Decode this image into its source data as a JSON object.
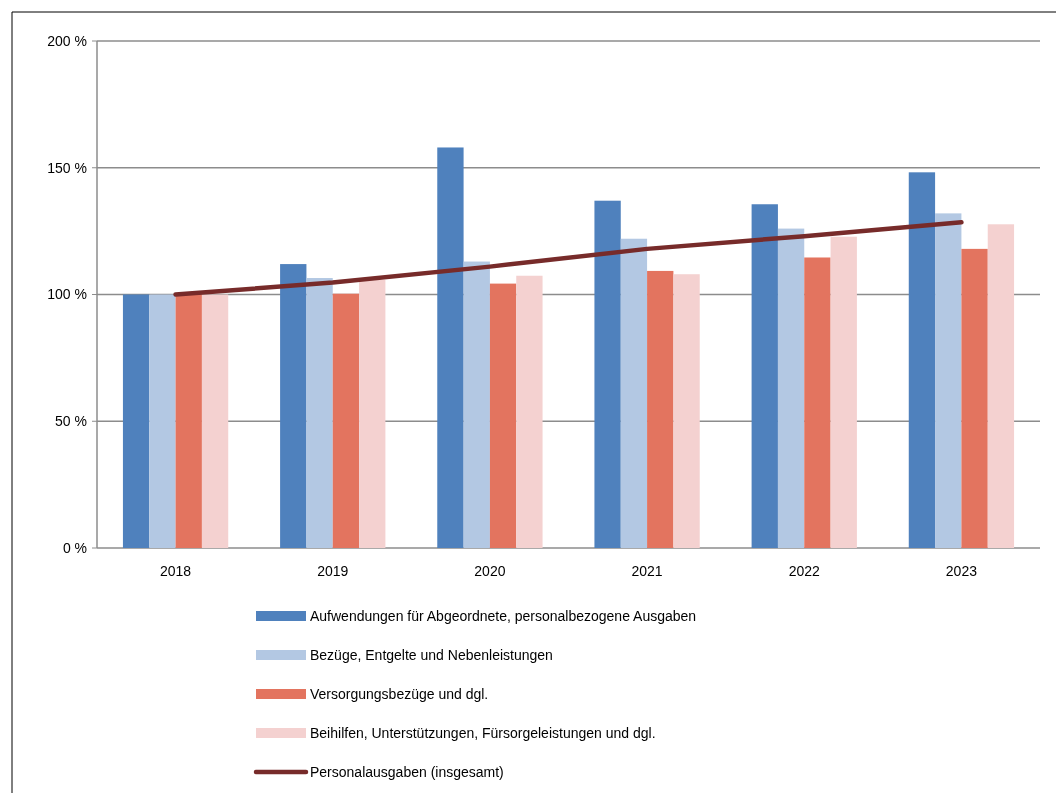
{
  "chart_data": {
    "type": "bar",
    "categories": [
      "2018",
      "2019",
      "2020",
      "2021",
      "2022",
      "2023"
    ],
    "series": [
      {
        "name": "Aufwendungen für Abgeordnete, personalbezogene Ausgaben",
        "color": "#4f81bd",
        "values": [
          100,
          112,
          158,
          137,
          135.6,
          148.2
        ]
      },
      {
        "name": "Bezüge, Entgelte und Nebenleistungen",
        "color": "#b3c8e3",
        "values": [
          100,
          106.5,
          113,
          122,
          126,
          132
        ]
      },
      {
        "name": "Versorgungsbezüge und dgl.",
        "color": "#e3745f",
        "values": [
          100,
          100.3,
          104.3,
          109.3,
          114.6,
          118
        ]
      },
      {
        "name": "Beihilfen, Unterstützungen, Fürsorgeleistungen und dgl.",
        "color": "#f4d1d0",
        "values": [
          100,
          105.8,
          107.4,
          108,
          122.8,
          127.7
        ]
      },
      {
        "name": "Personalausgaben (insgesamt)",
        "type": "line",
        "color": "#772b2a",
        "values": [
          100,
          104.7,
          111,
          118,
          123,
          128.5
        ]
      }
    ],
    "ylim": [
      0,
      200
    ],
    "yticks": [
      {
        "value": 0,
        "label": "0 %"
      },
      {
        "value": 50,
        "label": "50 %"
      },
      {
        "value": 100,
        "label": "100 %"
      },
      {
        "value": 150,
        "label": "150 %"
      },
      {
        "value": 200,
        "label": "200 %"
      }
    ],
    "grid": "y",
    "legend": "bottom"
  }
}
